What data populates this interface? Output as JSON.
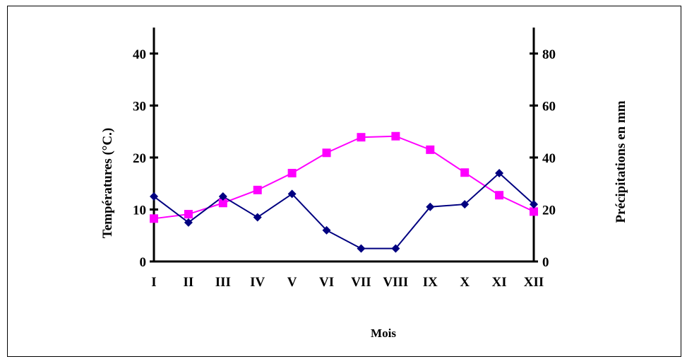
{
  "chart_data": {
    "type": "line",
    "categories": [
      "I",
      "II",
      "III",
      "IV",
      "V",
      "VI",
      "VII",
      "VIII",
      "IX",
      "X",
      "XI",
      "XII"
    ],
    "xlabel": "Mois",
    "ylabel_left": "Températures (°C.)",
    "ylabel_right": "Précipitations en mm",
    "ylim_left": [
      0,
      45
    ],
    "yticks_left": [
      0,
      10,
      20,
      30,
      40
    ],
    "ylim_right": [
      0,
      90
    ],
    "yticks_right": [
      0,
      20,
      40,
      60,
      80
    ],
    "grid": false,
    "series": [
      {
        "axis": "right",
        "color": "#ff00ff",
        "marker": "square",
        "values": [
          16.5,
          18.2,
          22.5,
          27.5,
          34,
          41.8,
          47.8,
          48.2,
          43,
          34.2,
          25.5,
          19.2
        ]
      },
      {
        "axis": "left",
        "color": "#000080",
        "marker": "diamond",
        "values": [
          12.5,
          7.5,
          12.5,
          8.5,
          13,
          6,
          2.5,
          2.5,
          10.5,
          11,
          17,
          11
        ]
      }
    ]
  }
}
